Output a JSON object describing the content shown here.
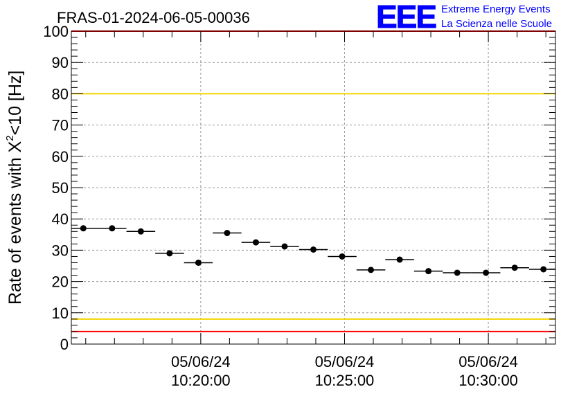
{
  "chart_data": {
    "type": "scatter",
    "title": "FRAS-01-2024-06-05-00036",
    "ylabel_main": "Rate of events with X",
    "ylabel_sup": "2",
    "ylabel_tail": "<10 [Hz]",
    "xlabel": "",
    "ylim": [
      0,
      100
    ],
    "y_ticks": [
      "0",
      "10",
      "20",
      "30",
      "40",
      "50",
      "60",
      "70",
      "80",
      "90",
      "100"
    ],
    "x_ticks": [
      {
        "date": "05/06/24",
        "time": "10:20:00"
      },
      {
        "date": "05/06/24",
        "time": "10:25:00"
      },
      {
        "date": "05/06/24",
        "time": "10:30:00"
      }
    ],
    "x_range": [
      "10:15:30",
      "10:32:20"
    ],
    "grid": true,
    "points": [
      {
        "time": "10:15:55",
        "value": 37.0
      },
      {
        "time": "10:16:55",
        "value": 37.0
      },
      {
        "time": "10:17:55",
        "value": 36.0
      },
      {
        "time": "10:18:55",
        "value": 29.0
      },
      {
        "time": "10:19:55",
        "value": 26.0
      },
      {
        "time": "10:20:55",
        "value": 35.5
      },
      {
        "time": "10:21:55",
        "value": 32.5
      },
      {
        "time": "10:22:55",
        "value": 31.2
      },
      {
        "time": "10:23:55",
        "value": 30.2
      },
      {
        "time": "10:24:55",
        "value": 28.0
      },
      {
        "time": "10:25:55",
        "value": 23.7
      },
      {
        "time": "10:26:55",
        "value": 27.0
      },
      {
        "time": "10:27:55",
        "value": 23.3
      },
      {
        "time": "10:28:55",
        "value": 22.8
      },
      {
        "time": "10:29:55",
        "value": 22.8
      },
      {
        "time": "10:30:55",
        "value": 24.4
      },
      {
        "time": "10:31:55",
        "value": 23.9
      }
    ],
    "bin_width_seconds": 60,
    "reference_lines": [
      {
        "value": 80,
        "color": "#f5d400"
      },
      {
        "value": 8,
        "color": "#f5d400"
      },
      {
        "value": 4,
        "color": "#ff0000"
      },
      {
        "value": 100,
        "color": "#ff0000"
      }
    ]
  },
  "logo": {
    "letters": "EEE",
    "line1": "Extreme Energy Events",
    "line2": "La Scienza nelle Scuole",
    "color": "#0000ff"
  }
}
